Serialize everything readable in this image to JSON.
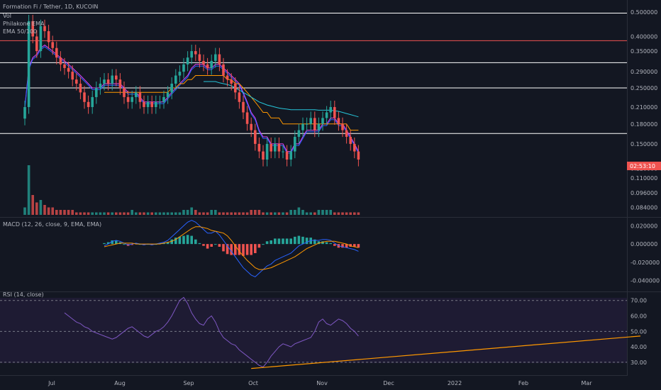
{
  "header": {
    "title": "Formation Fi / Tether, 1D, KUCOIN",
    "indicator_vol": "Vol",
    "indicator_philakone": "Philakone EMA",
    "indicator_ema": "EMA 50/100"
  },
  "price_label": "02:53:10",
  "macd_label": "MACD (12, 26, close, 9, EMA, EMA)",
  "rsi_label": "RSI (14, close)",
  "colors": {
    "background": "#131722",
    "bull": "#26a69a",
    "bear": "#ef5350",
    "macd_line": "#2962ff",
    "signal_line": "#ff9800",
    "rsi_line": "#7e57c2",
    "trend_line": "#ff9800",
    "resistance_red": "#ef5350",
    "support_white": "#ffffff"
  },
  "chart_data": [
    {
      "type": "candlestick",
      "title": "Formation Fi / Tether, 1D, KUCOIN",
      "y_ticks": [
        "0.500000",
        "0.400000",
        "0.350000",
        "0.290000",
        "0.250000",
        "0.210000",
        "0.180000",
        "0.150000",
        "0.120000",
        "0.110000",
        "0.096000",
        "0.084000"
      ],
      "y_scale": "log",
      "ylim": [
        0.08,
        0.53
      ],
      "horizontal_levels": [
        {
          "value": 0.495,
          "color": "#ffffff"
        },
        {
          "value": 0.385,
          "color": "#ef5350"
        },
        {
          "value": 0.315,
          "color": "#ffffff"
        },
        {
          "value": 0.25,
          "color": "#ffffff"
        },
        {
          "value": 0.165,
          "color": "#ffffff"
        }
      ],
      "close_series": [
        0.21,
        0.46,
        0.4,
        0.35,
        0.44,
        0.42,
        0.38,
        0.36,
        0.33,
        0.31,
        0.3,
        0.29,
        0.27,
        0.26,
        0.24,
        0.22,
        0.21,
        0.23,
        0.25,
        0.26,
        0.27,
        0.26,
        0.28,
        0.27,
        0.25,
        0.23,
        0.22,
        0.23,
        0.24,
        0.22,
        0.21,
        0.22,
        0.21,
        0.22,
        0.22,
        0.23,
        0.24,
        0.26,
        0.28,
        0.29,
        0.31,
        0.33,
        0.35,
        0.34,
        0.32,
        0.31,
        0.3,
        0.32,
        0.34,
        0.31,
        0.28,
        0.27,
        0.26,
        0.24,
        0.22,
        0.2,
        0.18,
        0.17,
        0.15,
        0.14,
        0.13,
        0.15,
        0.14,
        0.15,
        0.14,
        0.14,
        0.13,
        0.14,
        0.16,
        0.17,
        0.18,
        0.18,
        0.19,
        0.17,
        0.18,
        0.19,
        0.2,
        0.21,
        0.19,
        0.18,
        0.17,
        0.16,
        0.15,
        0.14,
        0.13
      ],
      "vol_series": [
        3,
        20,
        8,
        5,
        6,
        4,
        3,
        3,
        2,
        2,
        2,
        2,
        2,
        1,
        1,
        1,
        1,
        1,
        1,
        1,
        1,
        1,
        1,
        1,
        1,
        1,
        1,
        2,
        1,
        1,
        1,
        1,
        1,
        1,
        1,
        1,
        1,
        1,
        1,
        1,
        2,
        2,
        3,
        2,
        1,
        1,
        1,
        2,
        2,
        1,
        1,
        1,
        1,
        1,
        1,
        1,
        1,
        2,
        2,
        2,
        1,
        1,
        1,
        1,
        1,
        1,
        1,
        2,
        2,
        3,
        2,
        1,
        1,
        1,
        2,
        2,
        2,
        2,
        1,
        1,
        1,
        1,
        1,
        1,
        1
      ],
      "ema_fast": [
        0.21,
        0.3,
        0.33,
        0.34,
        0.36,
        0.37,
        0.36,
        0.35,
        0.34,
        0.33,
        0.32,
        0.31,
        0.3,
        0.29,
        0.28,
        0.27,
        0.26,
        0.25,
        0.25,
        0.25,
        0.26,
        0.26,
        0.26,
        0.26,
        0.26,
        0.25,
        0.24,
        0.24,
        0.24,
        0.23,
        0.22,
        0.22,
        0.22,
        0.22,
        0.22,
        0.22,
        0.23,
        0.24,
        0.25,
        0.26,
        0.27,
        0.28,
        0.3,
        0.31,
        0.31,
        0.31,
        0.3,
        0.3,
        0.31,
        0.31,
        0.3,
        0.29,
        0.28,
        0.27,
        0.26,
        0.24,
        0.22,
        0.2,
        0.19,
        0.17,
        0.16,
        0.16,
        0.15,
        0.15,
        0.15,
        0.15,
        0.14,
        0.14,
        0.15,
        0.15,
        0.16,
        0.17,
        0.17,
        0.17,
        0.17,
        0.18,
        0.18,
        0.19,
        0.19,
        0.18,
        0.18,
        0.17,
        0.16,
        0.15,
        0.14
      ],
      "ema_slow": [
        null,
        null,
        null,
        null,
        null,
        null,
        null,
        null,
        null,
        null,
        null,
        null,
        null,
        null,
        null,
        null,
        null,
        null,
        null,
        null,
        0.24,
        0.24,
        0.24,
        0.24,
        0.24,
        0.24,
        0.24,
        0.24,
        0.24,
        0.24,
        0.24,
        0.24,
        0.24,
        0.24,
        0.24,
        0.24,
        0.24,
        0.25,
        0.25,
        0.26,
        0.26,
        0.27,
        0.27,
        0.28,
        0.28,
        0.28,
        0.28,
        0.28,
        0.28,
        0.28,
        0.28,
        0.27,
        0.27,
        0.26,
        0.26,
        0.25,
        0.24,
        0.23,
        0.22,
        0.21,
        0.2,
        0.2,
        0.19,
        0.19,
        0.19,
        0.18,
        0.18,
        0.18,
        0.18,
        0.18,
        0.18,
        0.18,
        0.18,
        0.18,
        0.18,
        0.18,
        0.18,
        0.18,
        0.18,
        0.18,
        0.18,
        0.18,
        0.17,
        0.17,
        0.17
      ],
      "ema_100": [
        null,
        null,
        null,
        null,
        null,
        null,
        null,
        null,
        null,
        null,
        null,
        null,
        null,
        null,
        null,
        null,
        null,
        null,
        null,
        null,
        null,
        null,
        null,
        null,
        null,
        null,
        null,
        null,
        null,
        null,
        null,
        null,
        null,
        null,
        null,
        null,
        null,
        null,
        null,
        null,
        null,
        null,
        null,
        null,
        null,
        0.265,
        0.265,
        0.265,
        0.265,
        0.262,
        0.26,
        0.258,
        0.255,
        0.25,
        0.245,
        0.24,
        0.235,
        0.23,
        0.225,
        0.22,
        0.217,
        0.214,
        0.212,
        0.21,
        0.208,
        0.207,
        0.206,
        0.205,
        0.205,
        0.205,
        0.205,
        0.205,
        0.205,
        0.205,
        0.204,
        0.204,
        0.204,
        0.204,
        0.203,
        0.202,
        0.2,
        0.198,
        0.196,
        0.194,
        0.192
      ]
    },
    {
      "type": "macd",
      "title": "MACD (12, 26, close, 9, EMA, EMA)",
      "y_ticks": [
        "0.020000",
        "0.000000",
        "-0.020000",
        "-0.040000"
      ],
      "ylim": [
        -0.045,
        0.025
      ],
      "macd": [
        null,
        null,
        null,
        null,
        null,
        null,
        null,
        null,
        null,
        null,
        null,
        null,
        null,
        null,
        null,
        null,
        null,
        null,
        null,
        null,
        -0.002,
        0.0,
        0.003,
        0.004,
        0.003,
        0.001,
        -0.001,
        0.0,
        0.001,
        0.0,
        -0.001,
        0.0,
        -0.001,
        0.0,
        0.001,
        0.002,
        0.004,
        0.008,
        0.012,
        0.016,
        0.02,
        0.024,
        0.026,
        0.024,
        0.02,
        0.016,
        0.012,
        0.012,
        0.014,
        0.01,
        0.004,
        -0.002,
        -0.008,
        -0.014,
        -0.02,
        -0.026,
        -0.03,
        -0.034,
        -0.036,
        -0.032,
        -0.028,
        -0.024,
        -0.022,
        -0.018,
        -0.016,
        -0.014,
        -0.012,
        -0.01,
        -0.006,
        -0.002,
        0.0,
        0.002,
        0.004,
        0.004,
        0.004,
        0.005,
        0.005,
        0.004,
        0.001,
        -0.002,
        -0.003,
        -0.004,
        -0.005,
        -0.006,
        -0.008
      ],
      "signal": [
        null,
        null,
        null,
        null,
        null,
        null,
        null,
        null,
        null,
        null,
        null,
        null,
        null,
        null,
        null,
        null,
        null,
        null,
        null,
        null,
        -0.003,
        -0.002,
        -0.001,
        0.0,
        0.001,
        0.001,
        0.001,
        0.001,
        0.0,
        0.0,
        0.0,
        0.0,
        0.0,
        0.0,
        0.0,
        0.001,
        0.002,
        0.003,
        0.005,
        0.008,
        0.011,
        0.014,
        0.017,
        0.019,
        0.019,
        0.018,
        0.017,
        0.015,
        0.014,
        0.013,
        0.012,
        0.009,
        0.004,
        -0.002,
        -0.008,
        -0.013,
        -0.018,
        -0.022,
        -0.026,
        -0.028,
        -0.028,
        -0.027,
        -0.026,
        -0.024,
        -0.022,
        -0.02,
        -0.018,
        -0.016,
        -0.014,
        -0.011,
        -0.008,
        -0.005,
        -0.003,
        -0.001,
        0.001,
        0.002,
        0.003,
        0.003,
        0.003,
        0.002,
        0.001,
        0.0,
        -0.002,
        -0.003,
        -0.004
      ]
    },
    {
      "type": "line",
      "title": "RSI (14, close)",
      "y_ticks": [
        "70.00",
        "60.00",
        "50.00",
        "40.00",
        "30.00"
      ],
      "ylim": [
        24,
        74
      ],
      "bands": [
        70,
        50,
        30
      ],
      "values": [
        null,
        null,
        null,
        null,
        null,
        null,
        null,
        null,
        null,
        null,
        62,
        60,
        58,
        56,
        55,
        53,
        52,
        50,
        49,
        48,
        47,
        46,
        45,
        46,
        48,
        50,
        52,
        53,
        51,
        49,
        47,
        46,
        48,
        50,
        51,
        53,
        56,
        60,
        65,
        70,
        72,
        68,
        62,
        58,
        55,
        54,
        58,
        60,
        56,
        50,
        46,
        44,
        42,
        41,
        38,
        36,
        34,
        32,
        30,
        28,
        27,
        30,
        34,
        37,
        40,
        42,
        41,
        40,
        42,
        43,
        44,
        45,
        46,
        50,
        56,
        58,
        55,
        54,
        56,
        58,
        57,
        55,
        52,
        50,
        47
      ],
      "trend_line": {
        "from": {
          "i": 57,
          "v": 26
        },
        "to": {
          "i": 155,
          "v": 47
        }
      },
      "x_ticks": [
        "Jul",
        "Aug",
        "Sep",
        "Oct",
        "Nov",
        "Dec",
        "2022",
        "Feb",
        "Mar"
      ]
    }
  ]
}
